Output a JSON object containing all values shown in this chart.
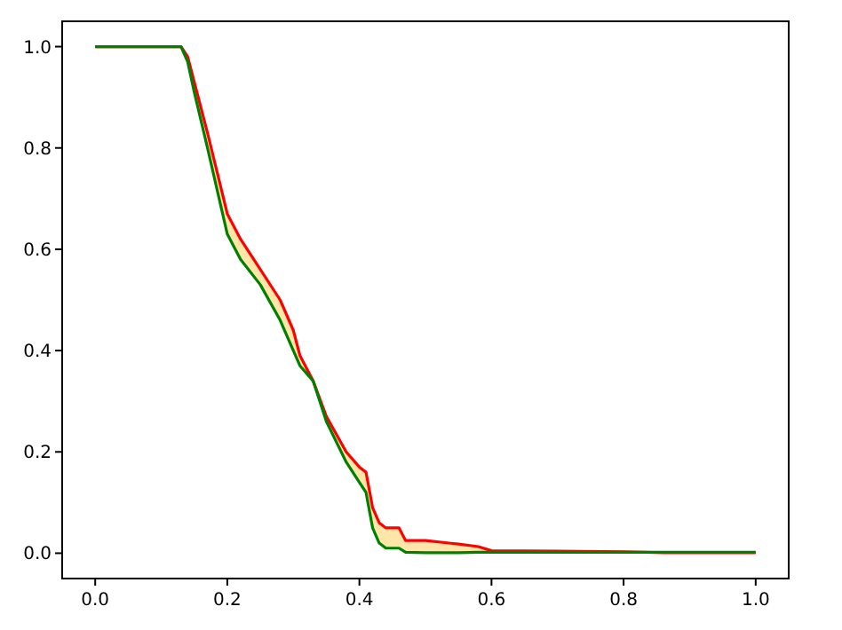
{
  "chart_data": {
    "type": "line",
    "x": [
      0,
      0.13,
      0.14,
      0.15,
      0.17,
      0.2,
      0.22,
      0.25,
      0.28,
      0.3,
      0.31,
      0.33,
      0.35,
      0.38,
      0.4,
      0.41,
      0.42,
      0.43,
      0.44,
      0.46,
      0.47,
      0.5,
      0.55,
      0.58,
      0.6,
      0.7,
      0.8,
      0.86,
      1.0
    ],
    "series": [
      {
        "color": "#ff0000",
        "values": [
          1,
          1,
          0.98,
          0.93,
          0.83,
          0.67,
          0.62,
          0.56,
          0.5,
          0.44,
          0.39,
          0.34,
          0.27,
          0.2,
          0.17,
          0.16,
          0.09,
          0.06,
          0.05,
          0.05,
          0.025,
          0.025,
          0.018,
          0.013,
          0.005,
          0.004,
          0.003,
          0.001,
          0.001
        ],
        "lower": [
          1,
          1,
          0.97,
          0.91,
          0.8,
          0.63,
          0.58,
          0.53,
          0.46,
          0.4,
          0.37,
          0.34,
          0.26,
          0.18,
          0.14,
          0.12,
          0.05,
          0.02,
          0.01,
          0.01,
          0.002,
          0.001,
          0.001,
          0.002,
          0.002,
          0.002,
          0.002,
          0.002,
          0.002
        ],
        "upper": [
          1,
          1,
          0.98,
          0.93,
          0.83,
          0.67,
          0.62,
          0.56,
          0.5,
          0.44,
          0.39,
          0.34,
          0.27,
          0.2,
          0.17,
          0.16,
          0.09,
          0.06,
          0.05,
          0.05,
          0.025,
          0.025,
          0.018,
          0.013,
          0.005,
          0.004,
          0.003,
          0.001,
          0.001
        ]
      },
      {
        "color": "#008000",
        "values": [
          1,
          1,
          0.97,
          0.91,
          0.8,
          0.63,
          0.58,
          0.53,
          0.46,
          0.4,
          0.37,
          0.34,
          0.26,
          0.18,
          0.14,
          0.12,
          0.05,
          0.02,
          0.01,
          0.01,
          0.002,
          0.001,
          0.001,
          0.002,
          0.002,
          0.002,
          0.002,
          0.002,
          0.002
        ]
      }
    ],
    "xlim": [
      -0.05,
      1.05
    ],
    "ylim": [
      -0.05,
      1.05
    ],
    "xticks": [
      {
        "value": 0,
        "label": "0.0"
      },
      0.2,
      0.4,
      0.6,
      0.8,
      {
        "value": 1,
        "label": "1.0"
      }
    ],
    "yticks": [
      {
        "value": 0,
        "label": "0.0"
      },
      0.2,
      0.4,
      0.6,
      0.8,
      {
        "value": 1,
        "label": "1.0"
      }
    ],
    "grid": false
  }
}
